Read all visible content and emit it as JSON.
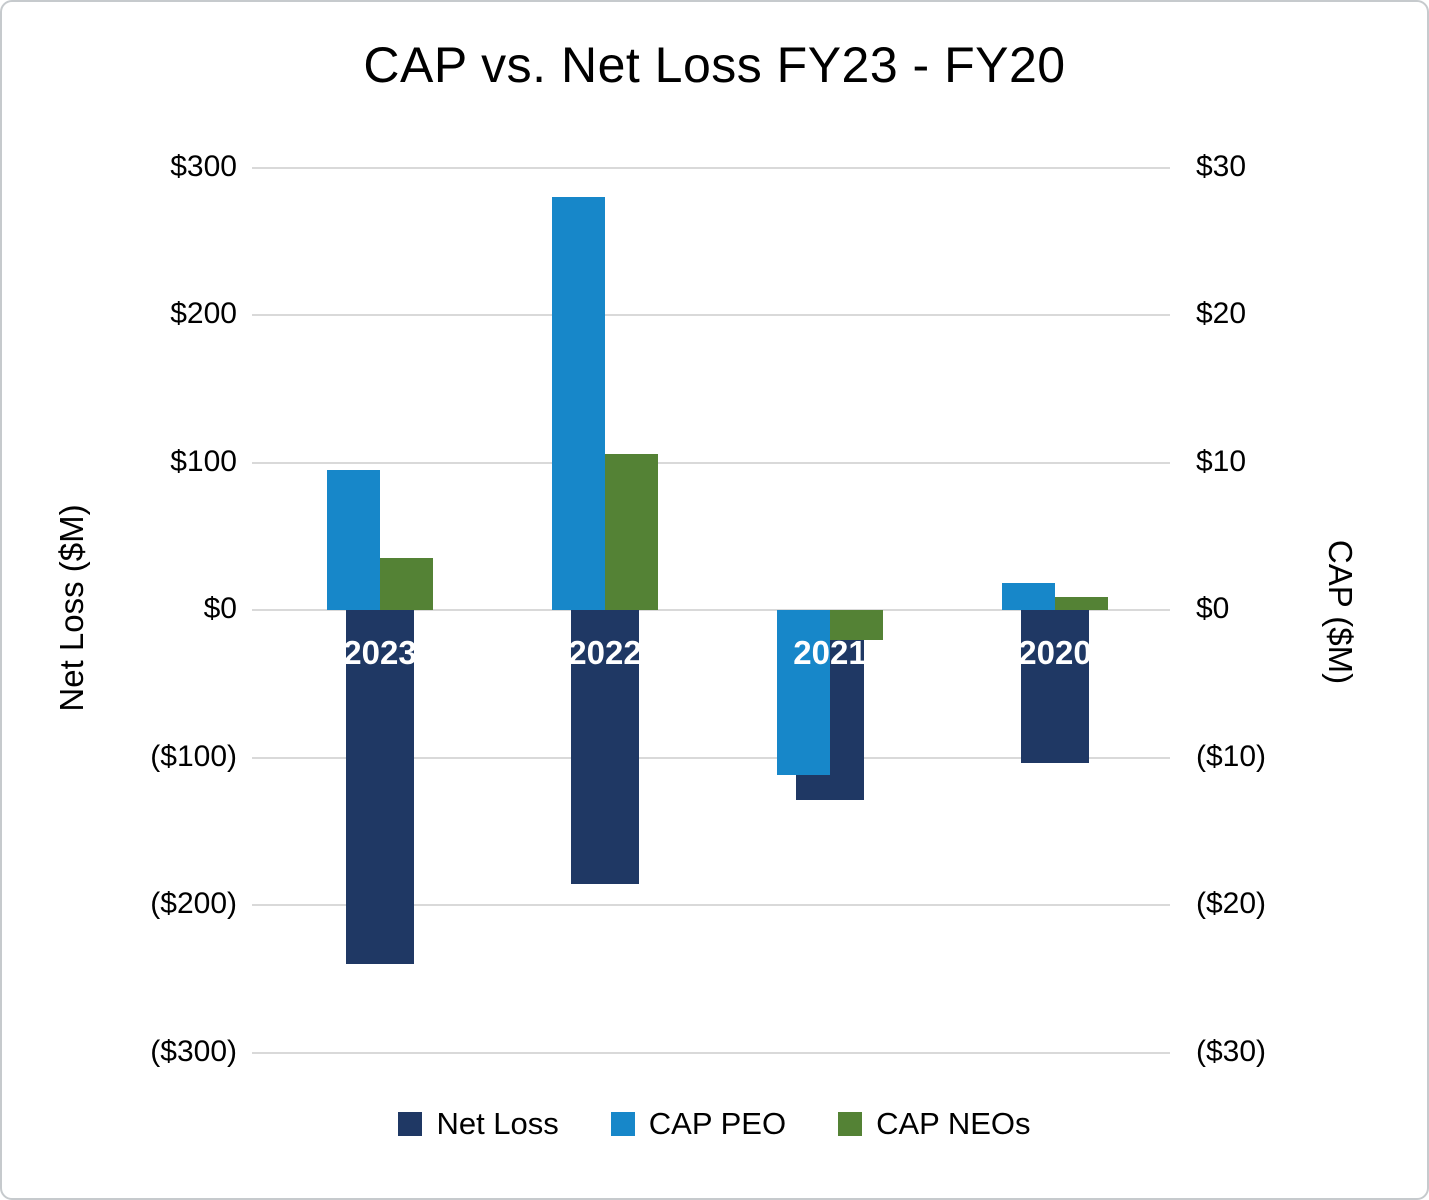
{
  "chart_data": {
    "type": "bar",
    "title": "CAP vs. Net Loss FY23 - FY20",
    "categories": [
      "2023",
      "2022",
      "2021",
      "2020"
    ],
    "series": [
      {
        "name": "Net Loss",
        "axis": "left",
        "color": "#1f3864",
        "values": [
          -240,
          -186,
          -129,
          -104
        ]
      },
      {
        "name": "CAP PEO",
        "axis": "right",
        "color": "#1787c9",
        "values": [
          9.5,
          28,
          -11.2,
          1.8
        ]
      },
      {
        "name": "CAP NEOs",
        "axis": "right",
        "color": "#548235",
        "values": [
          3.5,
          10.6,
          -2,
          0.9
        ]
      }
    ],
    "left_axis": {
      "title": "Net Loss ($M)",
      "ticks": [
        "$300",
        "$200",
        "$100",
        "$0",
        "($100)",
        "($200)",
        "($300)"
      ],
      "values": [
        300,
        200,
        100,
        0,
        -100,
        -200,
        -300
      ],
      "range": [
        -300,
        300
      ]
    },
    "right_axis": {
      "title": "CAP ($M)",
      "ticks": [
        "$30",
        "$20",
        "$10",
        "$0",
        "($10)",
        "($20)",
        "($30)"
      ],
      "values": [
        30,
        20,
        10,
        0,
        -10,
        -20,
        -30
      ],
      "range": [
        -30,
        30
      ]
    },
    "legend": [
      {
        "label": "Net Loss",
        "color": "#1f3864"
      },
      {
        "label": "CAP PEO",
        "color": "#1787c9"
      },
      {
        "label": "CAP NEOs",
        "color": "#548235"
      }
    ],
    "grid": true,
    "legend_position": "bottom",
    "colors": {
      "gridline": "#d9d9d9",
      "text": "#000000",
      "category_label_text": "#ffffff",
      "frame_border": "#c6cacd"
    }
  }
}
